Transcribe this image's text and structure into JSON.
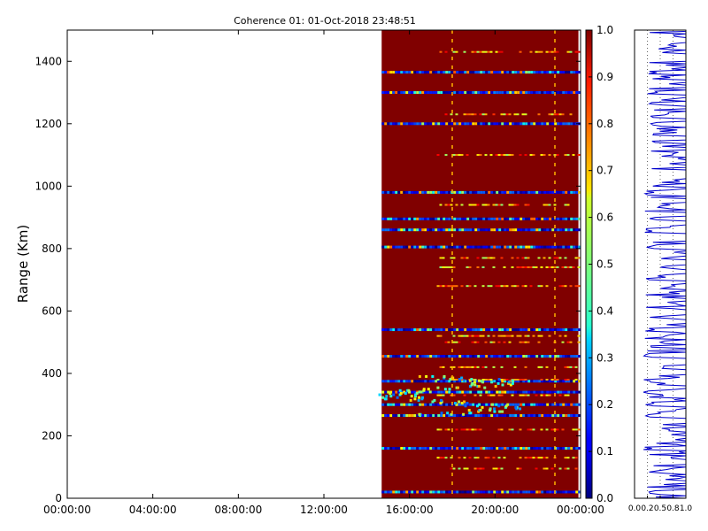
{
  "chart_data": {
    "type": "heatmap",
    "title": "Coherence 01: 01-Oct-2018 23:48:51",
    "ylabel": "Range (Km)",
    "xlabel": "",
    "ylim": [
      0,
      1500
    ],
    "x_ticks": [
      "00:00:00",
      "04:00:00",
      "08:00:00",
      "12:00:00",
      "16:00:00",
      "20:00:00",
      "00:00:00"
    ],
    "y_ticks": [
      0,
      200,
      400,
      600,
      800,
      1000,
      1200,
      1400
    ],
    "data_time_range_hours": [
      14.7,
      23.9
    ],
    "colorbar": {
      "range": [
        0.0,
        1.0
      ],
      "ticks": [
        "0.0",
        "0.1",
        "0.2",
        "0.3",
        "0.4",
        "0.5",
        "0.6",
        "0.7",
        "0.8",
        "0.9",
        "1.0"
      ],
      "colormap": "jet"
    },
    "low_coherence_ranges_km": [
      20,
      160,
      265,
      300,
      340,
      375,
      455,
      540,
      805,
      860,
      895,
      980,
      1200,
      1300,
      1365
    ],
    "mid_coherence_ranges_km": [
      95,
      130,
      220,
      330,
      380,
      420,
      500,
      520,
      680,
      740,
      770,
      940,
      1100,
      1230,
      1430
    ],
    "profile_panel": {
      "x_ticks": [
        "0.0",
        "0.2",
        "0.5",
        "0.8",
        "1.0"
      ],
      "xlim": [
        0.0,
        1.0
      ]
    }
  }
}
